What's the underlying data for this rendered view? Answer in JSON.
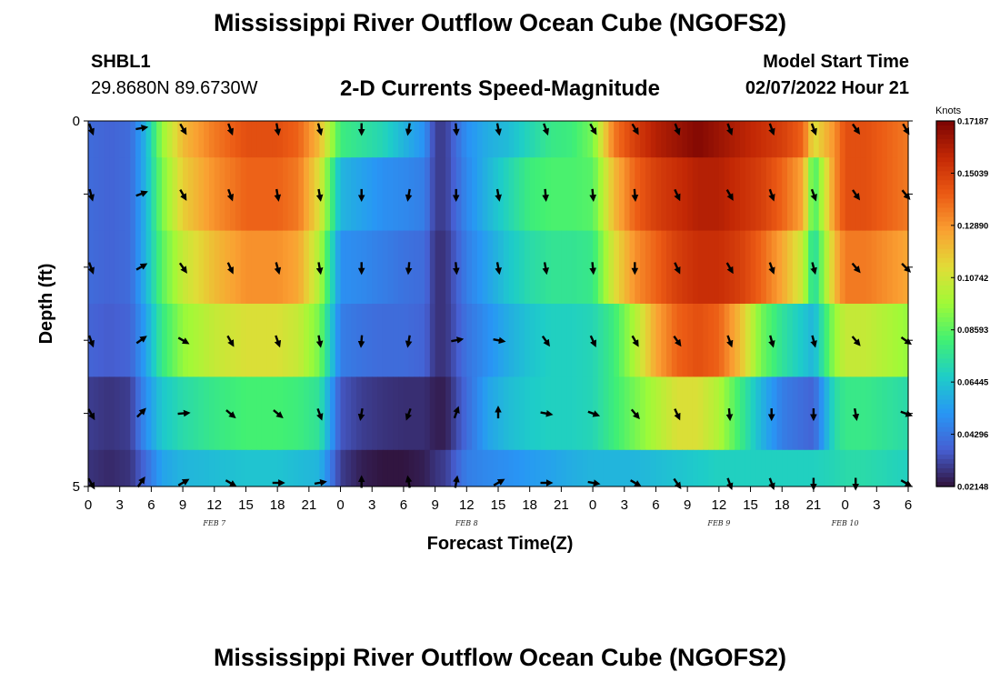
{
  "header": {
    "title": "Mississippi River Outflow Ocean Cube (NGOFS2)",
    "station": "SHBL1",
    "coords": "29.8680N  89.6730W",
    "subtitle": "2-D Currents Speed-Magnitude",
    "model_start_label": "Model Start Time",
    "model_start_value": "02/07/2022 Hour 21"
  },
  "footer": {
    "title": "Mississippi River Outflow Ocean Cube (NGOFS2)"
  },
  "chart_data": {
    "type": "heatmap",
    "xlabel": "Forecast Time(Z)",
    "ylabel": "Depth (ft)",
    "x_tick_labels": [
      "0",
      "3",
      "6",
      "9",
      "12",
      "15",
      "18",
      "21",
      "0",
      "3",
      "6",
      "9",
      "12",
      "15",
      "18",
      "21",
      "0",
      "3",
      "6",
      "9",
      "12",
      "15",
      "18",
      "21",
      "0",
      "3",
      "6"
    ],
    "date_labels": [
      {
        "label": "FEB 7",
        "hour": 12
      },
      {
        "label": "FEB 8",
        "hour": 36
      },
      {
        "label": "FEB 9",
        "hour": 60
      },
      {
        "label": "FEB 10",
        "hour": 72
      }
    ],
    "y_tick_labels": [
      "0",
      "5"
    ],
    "ylim": [
      0,
      5
    ],
    "xlim_hours": [
      0,
      78
    ],
    "colorbar": {
      "unit": "Knots",
      "ticks": [
        "0.17187",
        "0.15039",
        "0.12890",
        "0.10742",
        "0.08593",
        "0.06445",
        "0.04296",
        "0.02148"
      ],
      "min": 0.02148,
      "max": 0.17187
    },
    "depth_layers": 5,
    "arrow_hours": [
      0,
      5,
      9,
      13.5,
      18,
      22,
      26,
      30.5,
      35,
      39,
      43.5,
      48,
      52,
      56,
      61,
      65,
      69,
      73,
      78
    ],
    "arrow_rows": [
      {
        "depth": 0.1,
        "angles": [
          160,
          80,
          150,
          160,
          170,
          165,
          180,
          190,
          175,
          170,
          160,
          150,
          150,
          160,
          160,
          160,
          160,
          145,
          150
        ]
      },
      {
        "depth": 1.0,
        "angles": [
          165,
          70,
          150,
          160,
          170,
          170,
          180,
          190,
          180,
          170,
          175,
          175,
          175,
          155,
          150,
          160,
          160,
          145,
          140
        ]
      },
      {
        "depth": 2.0,
        "angles": [
          160,
          60,
          145,
          155,
          165,
          170,
          180,
          185,
          175,
          170,
          170,
          175,
          180,
          155,
          150,
          160,
          165,
          140,
          135
        ]
      },
      {
        "depth": 3.0,
        "angles": [
          160,
          55,
          120,
          150,
          160,
          170,
          185,
          190,
          80,
          100,
          145,
          155,
          150,
          145,
          160,
          165,
          165,
          140,
          125
        ]
      },
      {
        "depth": 4.0,
        "angles": [
          150,
          45,
          85,
          130,
          130,
          160,
          190,
          200,
          20,
          0,
          100,
          110,
          140,
          155,
          175,
          180,
          180,
          170,
          110
        ]
      },
      {
        "depth": 4.95,
        "angles": [
          150,
          35,
          60,
          120,
          90,
          80,
          0,
          350,
          10,
          60,
          90,
          100,
          120,
          145,
          160,
          160,
          180,
          180,
          120
        ]
      }
    ],
    "speed_profile": {
      "hours": [
        0,
        2,
        4,
        5.5,
        7,
        9,
        12,
        15,
        18,
        20,
        22,
        24,
        26,
        28,
        30,
        32,
        33,
        34,
        36,
        38,
        40,
        42,
        44,
        46,
        48,
        50,
        52,
        54,
        56,
        58,
        60,
        62,
        64,
        66,
        68,
        69,
        71,
        72,
        74,
        76,
        78
      ],
      "rows": [
        [
          0.04,
          0.038,
          0.04,
          0.06,
          0.095,
          0.12,
          0.135,
          0.145,
          0.145,
          0.14,
          0.12,
          0.08,
          0.075,
          0.07,
          0.06,
          0.05,
          0.03,
          0.03,
          0.05,
          0.058,
          0.062,
          0.07,
          0.078,
          0.08,
          0.09,
          0.135,
          0.15,
          0.16,
          0.165,
          0.17,
          0.165,
          0.16,
          0.155,
          0.15,
          0.14,
          0.11,
          0.13,
          0.145,
          0.145,
          0.14,
          0.135
        ],
        [
          0.04,
          0.038,
          0.04,
          0.06,
          0.09,
          0.115,
          0.13,
          0.14,
          0.14,
          0.135,
          0.11,
          0.06,
          0.055,
          0.05,
          0.048,
          0.045,
          0.03,
          0.03,
          0.048,
          0.06,
          0.07,
          0.08,
          0.083,
          0.083,
          0.085,
          0.12,
          0.14,
          0.15,
          0.155,
          0.16,
          0.16,
          0.155,
          0.15,
          0.14,
          0.125,
          0.08,
          0.13,
          0.145,
          0.145,
          0.14,
          0.135
        ],
        [
          0.04,
          0.038,
          0.04,
          0.06,
          0.085,
          0.105,
          0.12,
          0.13,
          0.13,
          0.125,
          0.1,
          0.05,
          0.048,
          0.045,
          0.042,
          0.04,
          0.028,
          0.028,
          0.045,
          0.055,
          0.065,
          0.072,
          0.076,
          0.076,
          0.078,
          0.11,
          0.13,
          0.14,
          0.15,
          0.155,
          0.155,
          0.15,
          0.14,
          0.125,
          0.105,
          0.07,
          0.12,
          0.135,
          0.135,
          0.13,
          0.125
        ],
        [
          0.038,
          0.036,
          0.038,
          0.055,
          0.078,
          0.095,
          0.105,
          0.11,
          0.11,
          0.105,
          0.09,
          0.045,
          0.042,
          0.04,
          0.04,
          0.038,
          0.028,
          0.028,
          0.042,
          0.05,
          0.058,
          0.064,
          0.068,
          0.068,
          0.07,
          0.08,
          0.1,
          0.125,
          0.14,
          0.145,
          0.14,
          0.12,
          0.09,
          0.075,
          0.065,
          0.06,
          0.095,
          0.105,
          0.105,
          0.1,
          0.095
        ],
        [
          0.03,
          0.028,
          0.03,
          0.05,
          0.065,
          0.072,
          0.078,
          0.082,
          0.082,
          0.08,
          0.075,
          0.035,
          0.03,
          0.028,
          0.027,
          0.027,
          0.024,
          0.024,
          0.04,
          0.055,
          0.062,
          0.066,
          0.068,
          0.068,
          0.07,
          0.08,
          0.09,
          0.1,
          0.11,
          0.11,
          0.1,
          0.08,
          0.06,
          0.045,
          0.04,
          0.038,
          0.072,
          0.078,
          0.078,
          0.075,
          0.072
        ],
        [
          0.028,
          0.026,
          0.028,
          0.04,
          0.055,
          0.06,
          0.062,
          0.064,
          0.064,
          0.062,
          0.06,
          0.03,
          0.024,
          0.022,
          0.022,
          0.024,
          0.028,
          0.03,
          0.045,
          0.048,
          0.05,
          0.053,
          0.055,
          0.058,
          0.06,
          0.06,
          0.06,
          0.062,
          0.064,
          0.066,
          0.068,
          0.068,
          0.068,
          0.068,
          0.068,
          0.068,
          0.07,
          0.072,
          0.072,
          0.07,
          0.068
        ]
      ]
    }
  }
}
